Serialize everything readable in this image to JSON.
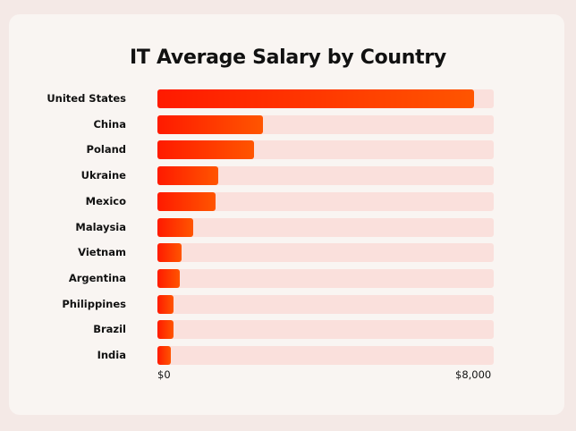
{
  "chart_data": {
    "type": "bar",
    "orientation": "horizontal",
    "title": "IT Average Salary by Country",
    "categories": [
      "United States",
      "China",
      "Poland",
      "Ukraine",
      "Mexico",
      "Malaysia",
      "Vietnam",
      "Argentina",
      "Philippines",
      "Brazil",
      "India"
    ],
    "values": [
      7540,
      2500,
      2290,
      1450,
      1380,
      845,
      584,
      527,
      393,
      386,
      323
    ],
    "xlim": [
      0,
      8000
    ],
    "tick_labels": [
      "$0",
      "$8,000"
    ],
    "grid": false,
    "colors": {
      "bar_start": "#ff1a00",
      "bar_end": "#ff5500",
      "track": "#fae0dc",
      "background": "#f9f5f2"
    }
  }
}
